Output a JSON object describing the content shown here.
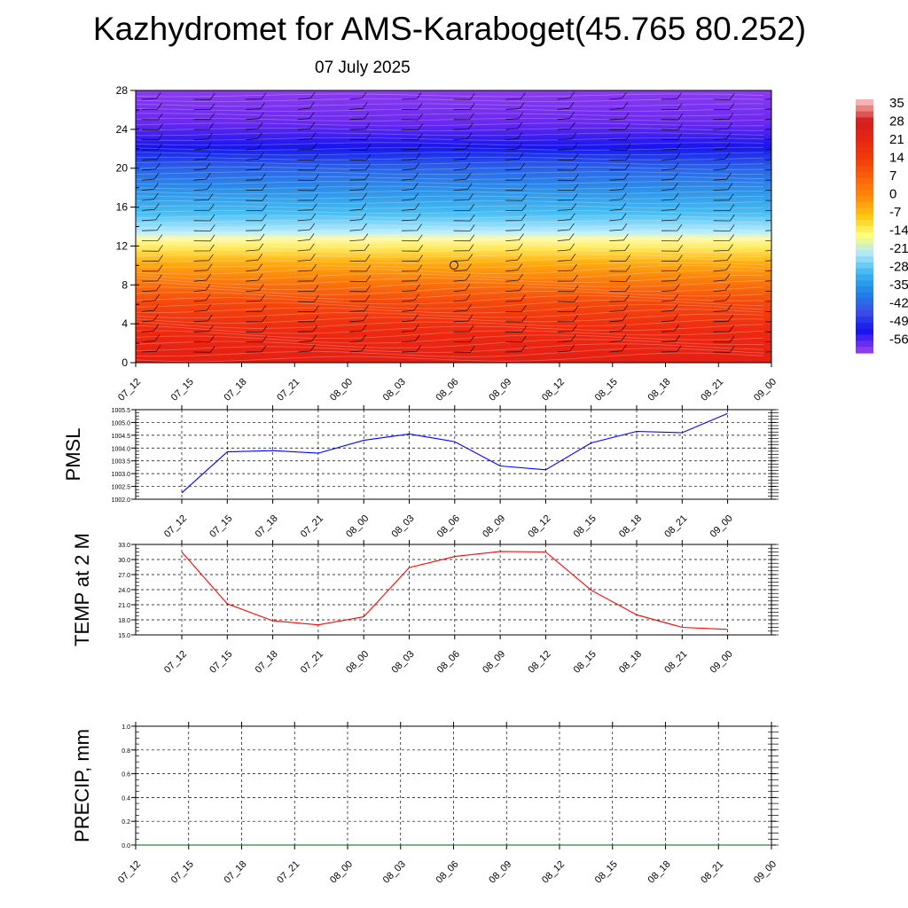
{
  "header": {
    "title": "Kazhydromet for AMS-Karaboget(45.765 80.252)",
    "date": "07 July 2025"
  },
  "chart_data": [
    {
      "type": "heatmap",
      "name": "cross-section",
      "title": "",
      "xlabel": "",
      "ylabel": "",
      "x": [
        "07_12",
        "07_15",
        "07_18",
        "07_21",
        "08_00",
        "08_03",
        "08_06",
        "08_09",
        "08_12",
        "08_15",
        "08_18",
        "08_21",
        "09_00"
      ],
      "y_ticks": [
        0,
        4,
        8,
        12,
        16,
        20,
        24,
        28
      ],
      "ylim": [
        0,
        28
      ],
      "colorbar": {
        "labels": [
          "35",
          "28",
          "21",
          "14",
          "7",
          "0",
          "-7",
          "-14",
          "-21",
          "-28",
          "-35",
          "-42",
          "-49",
          "-56"
        ],
        "colors": [
          "#f4b4b4",
          "#d41c1c",
          "#e62810",
          "#f23c0a",
          "#fa640a",
          "#ff8c0a",
          "#ffc814",
          "#ffff78",
          "#aae6ff",
          "#3cb4f0",
          "#1e82e6",
          "#3c50e6",
          "#1414f0",
          "#8c3cf0"
        ]
      },
      "wind_barbs": true
    },
    {
      "type": "line",
      "name": "pmsl",
      "ylabel": "PMSL",
      "x": [
        "07_12",
        "07_15",
        "07_18",
        "07_21",
        "08_00",
        "08_03",
        "08_06",
        "08_09",
        "08_12",
        "08_15",
        "08_18",
        "08_21",
        "09_00"
      ],
      "y_ticks": [
        "1002.0",
        "1002.5",
        "1003.0",
        "1003.5",
        "1004.0",
        "1004.5",
        "1005.0",
        "1005.5"
      ],
      "ylim": [
        1002.0,
        1005.5
      ],
      "series": [
        {
          "color": "#0000ff",
          "values": [
            1002.25,
            1003.85,
            1003.9,
            1003.8,
            1004.3,
            1004.55,
            1004.25,
            1003.3,
            1003.15,
            1004.2,
            1004.65,
            1004.6,
            1005.35
          ]
        }
      ],
      "grid": true
    },
    {
      "type": "line",
      "name": "temp",
      "ylabel": "TEMP at 2 M",
      "x": [
        "07_12",
        "07_15",
        "07_18",
        "07_21",
        "08_00",
        "08_03",
        "08_06",
        "08_09",
        "08_12",
        "08_15",
        "08_18",
        "08_21",
        "09_00"
      ],
      "y_ticks": [
        "15.0",
        "18.0",
        "21.0",
        "24.0",
        "27.0",
        "30.0",
        "33.0"
      ],
      "ylim": [
        15.0,
        33.0
      ],
      "series": [
        {
          "color": "#ff0000",
          "values": [
            31.5,
            21.2,
            17.8,
            17.0,
            18.6,
            28.4,
            30.6,
            31.6,
            31.5,
            23.9,
            19.0,
            16.5,
            16.1
          ]
        }
      ],
      "grid": true
    },
    {
      "type": "line",
      "name": "precip",
      "ylabel": "PRECIP, mm",
      "x": [
        "07_12",
        "07_15",
        "07_18",
        "07_21",
        "08_00",
        "08_03",
        "08_06",
        "08_09",
        "08_12",
        "08_15",
        "08_18",
        "08_21",
        "09_00"
      ],
      "y_ticks": [
        "0.0",
        "0.2",
        "0.4",
        "0.6",
        "0.8",
        "1.0"
      ],
      "ylim": [
        0.0,
        1.0
      ],
      "series": [
        {
          "color": "#006400",
          "values": [
            0,
            0,
            0,
            0,
            0,
            0,
            0,
            0,
            0,
            0,
            0,
            0,
            0
          ]
        }
      ],
      "grid": true
    }
  ]
}
